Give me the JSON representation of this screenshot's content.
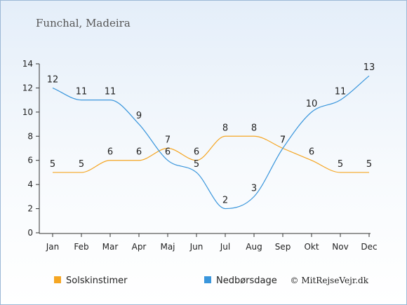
{
  "chart_data": {
    "type": "line",
    "title": "Funchal, Madeira",
    "categories": [
      "Jan",
      "Feb",
      "Mar",
      "Apr",
      "Maj",
      "Jun",
      "Jul",
      "Aug",
      "Sep",
      "Okt",
      "Nov",
      "Dec"
    ],
    "series": [
      {
        "name": "Solskinstimer",
        "color": "#f5a623",
        "values": [
          5,
          5,
          6,
          6,
          7,
          6,
          8,
          8,
          7,
          6,
          5,
          5
        ]
      },
      {
        "name": "Nedbørsdage",
        "color": "#3a96dc",
        "values": [
          12,
          11,
          11,
          9,
          6,
          5,
          2,
          3,
          7,
          10,
          11,
          13
        ]
      }
    ],
    "ylim": [
      0,
      14
    ],
    "yticks": [
      0,
      2,
      4,
      6,
      8,
      10,
      12,
      14
    ],
    "grid": false,
    "legend": "bottom"
  },
  "credit": "© MitRejseVejr.dk"
}
